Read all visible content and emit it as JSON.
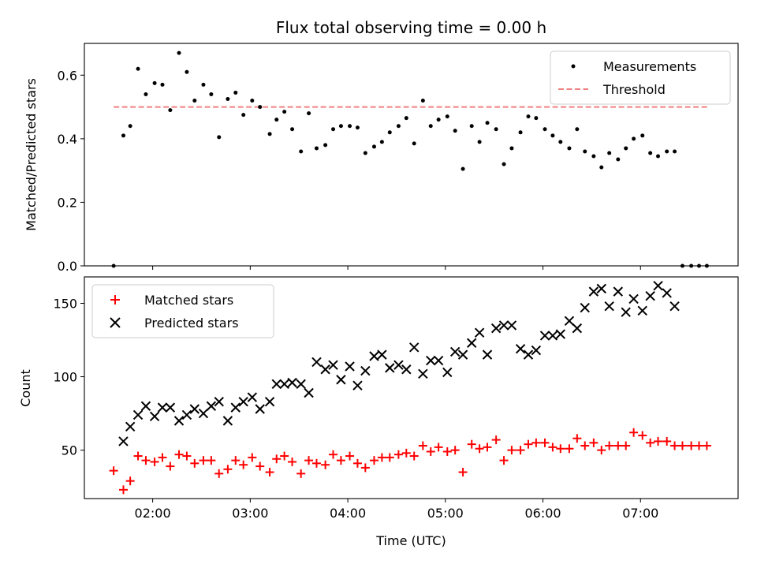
{
  "chart_data": [
    {
      "type": "scatter",
      "title": "Flux total observing time = 0.00 h",
      "xlabel": "",
      "ylabel": "Matched/Predicted stars",
      "xlim": [
        1.3,
        8.0
      ],
      "ylim": [
        0.0,
        0.7
      ],
      "yticks": [
        0.0,
        0.2,
        0.4,
        0.6
      ],
      "ytick_labels": [
        "0.0",
        "0.2",
        "0.4",
        "0.6"
      ],
      "xticks": [
        2,
        3,
        4,
        5,
        6,
        7
      ],
      "legend_position": "top-right",
      "threshold": {
        "name": "Threshold",
        "value": 0.5,
        "x_range": [
          1.6,
          7.7
        ],
        "color": "#f08080"
      },
      "series": [
        {
          "name": "Measurements",
          "color": "#000000",
          "x": [
            1.6,
            1.7,
            1.77,
            1.85,
            1.93,
            2.02,
            2.1,
            2.18,
            2.27,
            2.35,
            2.43,
            2.52,
            2.6,
            2.68,
            2.77,
            2.85,
            2.93,
            3.02,
            3.1,
            3.2,
            3.27,
            3.35,
            3.43,
            3.52,
            3.6,
            3.68,
            3.77,
            3.85,
            3.93,
            4.02,
            4.1,
            4.18,
            4.27,
            4.35,
            4.43,
            4.52,
            4.6,
            4.68,
            4.77,
            4.85,
            4.93,
            5.02,
            5.1,
            5.18,
            5.27,
            5.35,
            5.43,
            5.52,
            5.6,
            5.68,
            5.77,
            5.85,
            5.93,
            6.02,
            6.1,
            6.18,
            6.27,
            6.35,
            6.43,
            6.52,
            6.6,
            6.68,
            6.77,
            6.85,
            6.93,
            7.02,
            7.1,
            7.18,
            7.27,
            7.35,
            7.43,
            7.52,
            7.6,
            7.68
          ],
          "y": [
            0.0,
            0.41,
            0.44,
            0.62,
            0.54,
            0.575,
            0.57,
            0.49,
            0.67,
            0.61,
            0.52,
            0.57,
            0.54,
            0.405,
            0.525,
            0.545,
            0.475,
            0.52,
            0.5,
            0.415,
            0.46,
            0.485,
            0.43,
            0.36,
            0.48,
            0.37,
            0.38,
            0.43,
            0.44,
            0.44,
            0.435,
            0.355,
            0.375,
            0.39,
            0.42,
            0.44,
            0.465,
            0.385,
            0.52,
            0.44,
            0.46,
            0.47,
            0.425,
            0.305,
            0.44,
            0.39,
            0.45,
            0.43,
            0.32,
            0.37,
            0.42,
            0.47,
            0.465,
            0.43,
            0.41,
            0.39,
            0.37,
            0.43,
            0.36,
            0.345,
            0.31,
            0.355,
            0.335,
            0.37,
            0.4,
            0.41,
            0.355,
            0.345,
            0.36,
            0.36,
            0.0,
            0.0,
            0.0,
            0.0
          ]
        }
      ]
    },
    {
      "type": "scatter",
      "title": "",
      "xlabel": "Time (UTC)",
      "ylabel": "Count",
      "xlim": [
        1.3,
        8.0
      ],
      "ylim": [
        17,
        168
      ],
      "yticks": [
        50,
        100,
        150
      ],
      "ytick_labels": [
        "50",
        "100",
        "150"
      ],
      "xticks": [
        2,
        3,
        4,
        5,
        6,
        7
      ],
      "xtick_labels": [
        "02:00",
        "03:00",
        "04:00",
        "05:00",
        "06:00",
        "07:00"
      ],
      "legend_position": "top-left",
      "series": [
        {
          "name": "Matched stars",
          "marker": "plus",
          "color": "#ff0000",
          "x": [
            1.6,
            1.7,
            1.77,
            1.85,
            1.93,
            2.02,
            2.1,
            2.18,
            2.27,
            2.35,
            2.43,
            2.52,
            2.6,
            2.68,
            2.77,
            2.85,
            2.93,
            3.02,
            3.1,
            3.2,
            3.27,
            3.35,
            3.43,
            3.52,
            3.6,
            3.68,
            3.77,
            3.85,
            3.93,
            4.02,
            4.1,
            4.18,
            4.27,
            4.35,
            4.43,
            4.52,
            4.6,
            4.68,
            4.77,
            4.85,
            4.93,
            5.02,
            5.1,
            5.18,
            5.27,
            5.35,
            5.43,
            5.52,
            5.6,
            5.68,
            5.77,
            5.85,
            5.93,
            6.02,
            6.1,
            6.18,
            6.27,
            6.35,
            6.43,
            6.52,
            6.6,
            6.68,
            6.77,
            6.85,
            6.93,
            7.02,
            7.1,
            7.18,
            7.27,
            7.35,
            7.43,
            7.52,
            7.6,
            7.68
          ],
          "y": [
            36,
            23,
            29,
            46,
            43,
            42,
            45,
            39,
            47,
            46,
            41,
            43,
            43,
            34,
            37,
            43,
            40,
            45,
            39,
            35,
            44,
            46,
            42,
            34,
            43,
            41,
            40,
            47,
            43,
            46,
            41,
            38,
            43,
            45,
            45,
            47,
            48,
            46,
            53,
            49,
            52,
            49,
            50,
            35,
            54,
            51,
            52,
            57,
            43,
            50,
            50,
            54,
            55,
            55,
            52,
            51,
            51,
            58,
            53,
            55,
            50,
            53,
            53,
            53,
            62,
            60,
            55,
            56,
            56,
            53,
            53,
            53,
            53,
            53
          ]
        },
        {
          "name": "Predicted stars",
          "marker": "x",
          "color": "#000000",
          "x": [
            1.7,
            1.77,
            1.85,
            1.93,
            2.02,
            2.1,
            2.18,
            2.27,
            2.35,
            2.43,
            2.52,
            2.6,
            2.68,
            2.77,
            2.85,
            2.93,
            3.02,
            3.1,
            3.2,
            3.27,
            3.35,
            3.43,
            3.52,
            3.6,
            3.68,
            3.77,
            3.85,
            3.93,
            4.02,
            4.1,
            4.18,
            4.27,
            4.35,
            4.43,
            4.52,
            4.6,
            4.68,
            4.77,
            4.85,
            4.93,
            5.02,
            5.1,
            5.18,
            5.27,
            5.35,
            5.43,
            5.52,
            5.6,
            5.68,
            5.77,
            5.85,
            5.93,
            6.02,
            6.1,
            6.18,
            6.27,
            6.35,
            6.43,
            6.52,
            6.6,
            6.68,
            6.77,
            6.85,
            6.93,
            7.02,
            7.1,
            7.18,
            7.27,
            7.35
          ],
          "y": [
            56,
            66,
            74,
            80,
            73,
            79,
            79,
            70,
            74,
            78,
            75,
            80,
            83,
            70,
            79,
            83,
            86,
            78,
            83,
            95,
            95,
            96,
            95,
            89,
            110,
            105,
            108,
            98,
            107,
            94,
            104,
            114,
            115,
            106,
            108,
            105,
            120,
            102,
            111,
            111,
            103,
            117,
            115,
            123,
            130,
            115,
            133,
            135,
            135,
            119,
            115,
            118,
            128,
            128,
            129,
            138,
            133,
            147,
            158,
            160,
            148,
            158,
            144,
            153,
            145,
            155,
            162,
            157,
            148
          ]
        }
      ]
    }
  ]
}
